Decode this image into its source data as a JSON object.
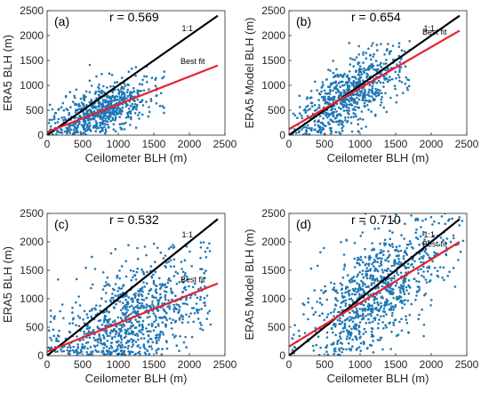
{
  "chart_data": [
    {
      "type": "scatter",
      "panel_label": "(a)",
      "r_text": "r = 0.569",
      "xlabel": "Ceilometer BLH (m)",
      "ylabel": "ERA5 BLH (m)",
      "xlim": [
        0,
        2500
      ],
      "ylim": [
        0,
        2500
      ],
      "xticks": [
        0,
        500,
        1000,
        1500,
        2000,
        2500
      ],
      "yticks": [
        0,
        500,
        1000,
        1500,
        2000,
        2500
      ],
      "grid": false,
      "one_to_one_label": "1:1",
      "fit_label": "Best fit",
      "one_to_one": {
        "x": [
          0,
          2400
        ],
        "y": [
          0,
          2400
        ]
      },
      "fit_line": {
        "x": [
          0,
          2400
        ],
        "y": [
          60,
          1400
        ]
      },
      "scatter_cloud": {
        "center": [
          800,
          500
        ],
        "spread": [
          350,
          250
        ],
        "count": 700,
        "x_range": [
          0,
          1650
        ],
        "y_range": [
          0,
          1500
        ]
      }
    },
    {
      "type": "scatter",
      "panel_label": "(b)",
      "r_text": "r = 0.654",
      "xlabel": "Ceilometer BLH (m)",
      "ylabel": "ERA5 Model BLH (m)",
      "xlim": [
        0,
        2500
      ],
      "ylim": [
        0,
        2500
      ],
      "xticks": [
        0,
        500,
        1000,
        1500,
        2000,
        2500
      ],
      "yticks": [
        0,
        500,
        1000,
        1500,
        2000,
        2500
      ],
      "grid": false,
      "one_to_one_label": "1:1",
      "fit_label": "Best fit",
      "one_to_one": {
        "x": [
          0,
          2400
        ],
        "y": [
          0,
          2400
        ]
      },
      "fit_line": {
        "x": [
          0,
          2400
        ],
        "y": [
          120,
          2100
        ]
      },
      "scatter_cloud": {
        "center": [
          850,
          800
        ],
        "spread": [
          350,
          350
        ],
        "count": 700,
        "x_range": [
          0,
          1700
        ],
        "y_range": [
          0,
          1900
        ]
      }
    },
    {
      "type": "scatter",
      "panel_label": "(c)",
      "r_text": "r = 0.532",
      "xlabel": "Ceilometer BLH (m)",
      "ylabel": "ERA5 BLH (m)",
      "xlim": [
        0,
        2500
      ],
      "ylim": [
        0,
        2500
      ],
      "xticks": [
        0,
        500,
        1000,
        1500,
        2000,
        2500
      ],
      "yticks": [
        0,
        500,
        1000,
        1500,
        2000,
        2500
      ],
      "grid": false,
      "one_to_one_label": "1:1",
      "fit_label": "Best fit",
      "one_to_one": {
        "x": [
          0,
          2400
        ],
        "y": [
          0,
          2400
        ]
      },
      "fit_line": {
        "x": [
          0,
          2400
        ],
        "y": [
          70,
          1270
        ]
      },
      "scatter_cloud": {
        "center": [
          1200,
          650
        ],
        "spread": [
          550,
          450
        ],
        "count": 900,
        "x_range": [
          0,
          2300
        ],
        "y_range": [
          0,
          2000
        ]
      }
    },
    {
      "type": "scatter",
      "panel_label": "(d)",
      "r_text": "r = 0.710",
      "xlabel": "Ceilometer BLH (m)",
      "ylabel": "ERA5 Model BLH (m)",
      "xlim": [
        0,
        2500
      ],
      "ylim": [
        0,
        2500
      ],
      "xticks": [
        0,
        500,
        1000,
        1500,
        2000,
        2500
      ],
      "yticks": [
        0,
        500,
        1000,
        1500,
        2000,
        2500
      ],
      "grid": false,
      "one_to_one_label": "1:1",
      "fit_label": "Best fit",
      "one_to_one": {
        "x": [
          0,
          2400
        ],
        "y": [
          0,
          2400
        ]
      },
      "fit_line": {
        "x": [
          0,
          2400
        ],
        "y": [
          160,
          2000
        ]
      },
      "scatter_cloud": {
        "center": [
          1250,
          1050
        ],
        "spread": [
          480,
          480
        ],
        "count": 900,
        "x_range": [
          0,
          2450
        ],
        "y_range": [
          0,
          2500
        ]
      }
    }
  ],
  "colors": {
    "scatter": "#1f77b4",
    "one_to_one": "#000000",
    "fit_line": "#e8202e",
    "axis": "#262626"
  }
}
